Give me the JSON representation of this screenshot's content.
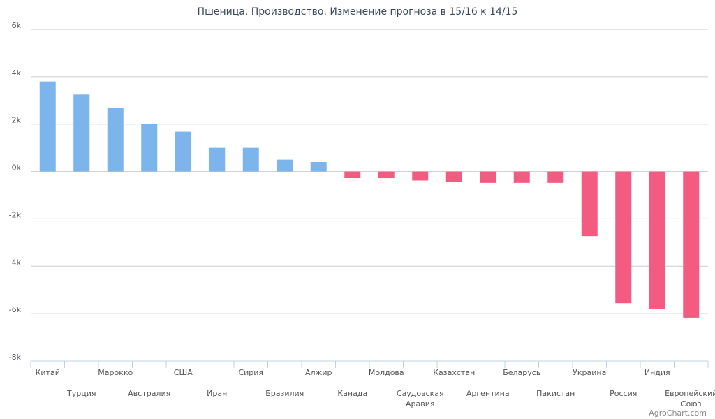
{
  "colors": {
    "positive": "#7cb5ec",
    "negative": "#f45b80",
    "grid": "#cccccc",
    "axis": "#c0d0e0"
  },
  "chart_data": {
    "type": "bar",
    "title": "Пшеница. Производство. Изменение прогноза в 15/16 к 14/15",
    "credit": "AgroChart.com",
    "xlabel": "",
    "ylabel": "",
    "ylim": [
      -8000,
      6000
    ],
    "yticks": [
      6000,
      4000,
      2000,
      0,
      -2000,
      -4000,
      -6000,
      -8000
    ],
    "ytick_labels": [
      "6k",
      "4k",
      "2k",
      "0k",
      "-2k",
      "-4k",
      "-6k",
      "-8k"
    ],
    "grid": true,
    "legend": "none",
    "categories": [
      "Китай",
      "Турция",
      "Марокко",
      "Австралия",
      "США",
      "Иран",
      "Сирия",
      "Бразилия",
      "Алжир",
      "Канада",
      "Молдова",
      "Саудовская Аравия",
      "Казахстан",
      "Аргентина",
      "Беларусь",
      "Пакистан",
      "Украина",
      "Россия",
      "Индия",
      "Европейский Союз"
    ],
    "values": [
      3800,
      3250,
      2700,
      2000,
      1680,
      1000,
      1000,
      500,
      400,
      -280,
      -280,
      -380,
      -450,
      -480,
      -480,
      -480,
      -2730,
      -5560,
      -5820,
      -6170
    ]
  }
}
